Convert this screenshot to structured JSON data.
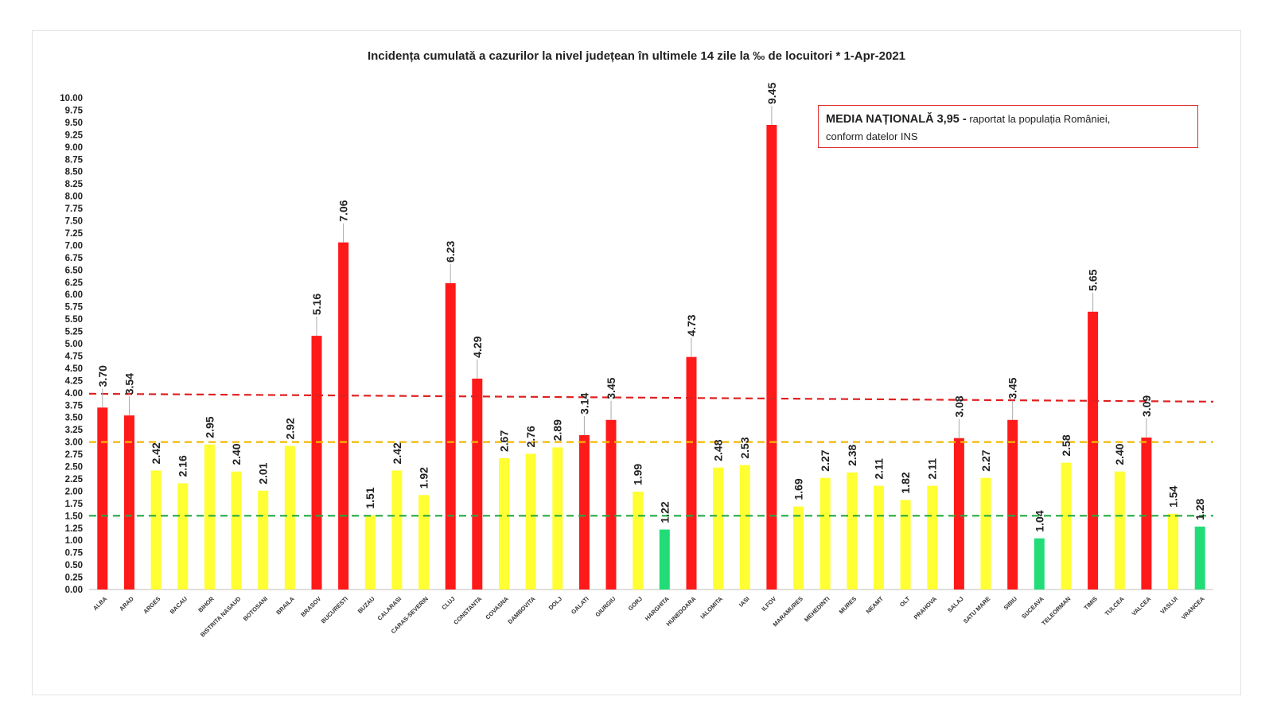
{
  "chart_data": {
    "type": "bar",
    "title": "Incidența cumulată a cazurilor la nivel județean în ultimele 14 zile la ‰ de locuitori * 1-Apr-2021",
    "xlabel": "",
    "ylabel": "",
    "ylim": [
      0,
      10
    ],
    "ytick_step": 0.25,
    "categories": [
      "ALBA",
      "ARAD",
      "ARGES",
      "BACAU",
      "BIHOR",
      "BISTRITA NASAUD",
      "BOTOSANI",
      "BRAILA",
      "BRASOV",
      "BUCURESTI",
      "BUZAU",
      "CALARASI",
      "CARAS-SEVERIN",
      "CLUJ",
      "CONSTANTA",
      "COVASNA",
      "DAMBOVITA",
      "DOLJ",
      "GALATI",
      "GIURGIU",
      "GORJ",
      "HARGHITA",
      "HUNEDOARA",
      "IALOMITA",
      "IASI",
      "ILFOV",
      "MARAMURES",
      "MEHEDINTI",
      "MURES",
      "NEAMT",
      "OLT",
      "PRAHOVA",
      "SALAJ",
      "SATU MARE",
      "SIBIU",
      "SUCEAVA",
      "TELEORMAN",
      "TIMIS",
      "TULCEA",
      "VALCEA",
      "VASLUI",
      "VRANCEA"
    ],
    "values": [
      3.7,
      3.54,
      2.42,
      2.16,
      2.95,
      2.4,
      2.01,
      2.92,
      5.16,
      7.06,
      1.51,
      2.42,
      1.92,
      6.23,
      4.29,
      2.67,
      2.76,
      2.89,
      3.14,
      3.45,
      1.99,
      1.22,
      4.73,
      2.48,
      2.53,
      9.45,
      1.69,
      2.27,
      2.38,
      2.11,
      1.82,
      2.11,
      3.08,
      2.27,
      3.45,
      1.04,
      2.58,
      5.65,
      2.4,
      3.09,
      1.54,
      1.28
    ],
    "value_labels": [
      "3.70",
      "3.54",
      "2.42",
      "2.16",
      "2.95",
      "2.40",
      "2.01",
      "2.92",
      "5.16",
      "7.06",
      "1.51",
      "2.42",
      "1.92",
      "6.23",
      "4.29",
      "2.67",
      "2.76",
      "2.89",
      "3.14",
      "3.45",
      "1.99",
      "1.22",
      "4.73",
      "2.48",
      "2.53",
      "9.45",
      "1.69",
      "2.27",
      "2.38",
      "2.11",
      "1.82",
      "2.11",
      "3.08",
      "2.27",
      "3.45",
      "1.04",
      "2.58",
      "5.65",
      "2.40",
      "3.09",
      "1.54",
      "1.28"
    ],
    "thresholds": [
      {
        "name": "media nationala",
        "value": 3.95,
        "color": "#e02020"
      },
      {
        "name": "prag 3",
        "value": 3.0,
        "color": "#f0b800"
      },
      {
        "name": "prag 1.5",
        "value": 1.5,
        "color": "#22aa44"
      }
    ],
    "colors": {
      "high": "#ff1a1a",
      "medium": "#ffff33",
      "low": "#22dd77"
    },
    "legend": {
      "bold_text": "MEDIA NAȚIONALĂ  3,95 -",
      "text": " raportat la populația României,",
      "line2": "conform datelor INS"
    }
  }
}
